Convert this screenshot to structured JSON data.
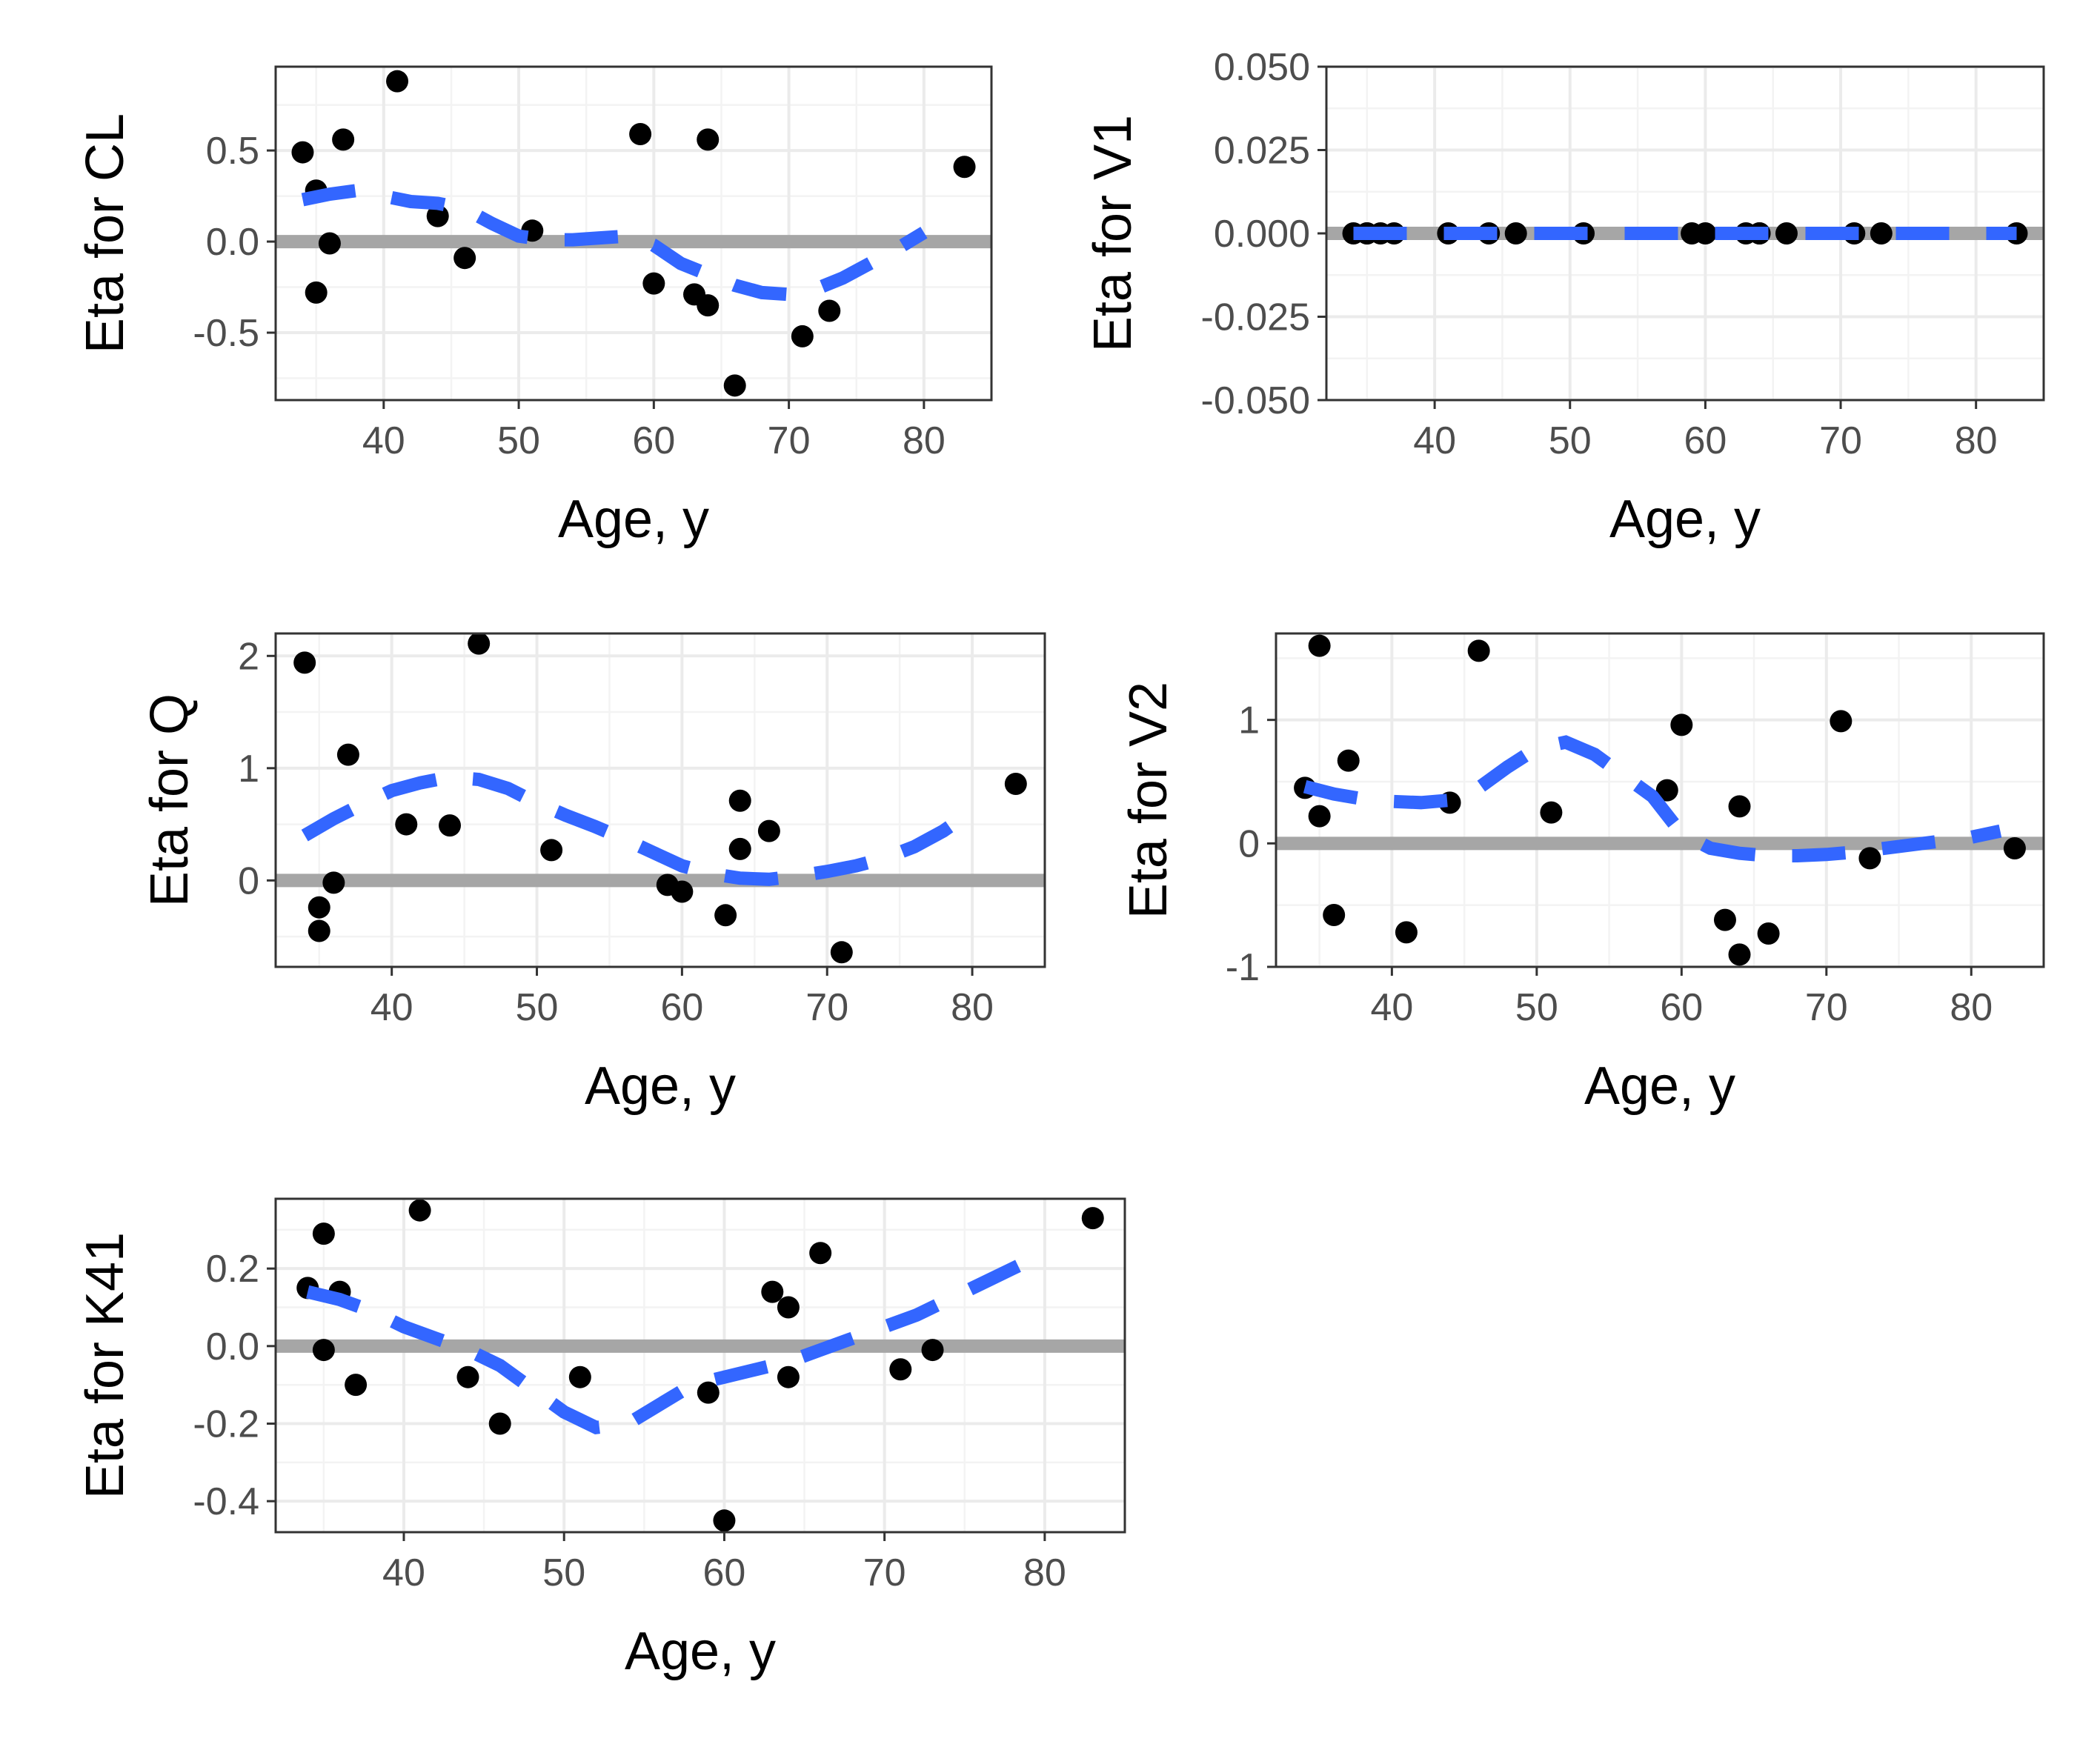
{
  "chart_data": [
    {
      "type": "scatter",
      "xlabel": "Age, y",
      "ylabel": "Eta for CL",
      "xlim": [
        32,
        85
      ],
      "ylim": [
        -0.87,
        0.96
      ],
      "xticks": [
        40,
        50,
        60,
        70,
        80
      ],
      "yticks": [
        -0.5,
        0.0,
        0.5
      ],
      "ytick_labels": [
        "-0.5",
        "0.0",
        "0.5"
      ],
      "reference_line": 0,
      "points": [
        [
          34,
          0.49
        ],
        [
          35,
          0.28
        ],
        [
          35,
          -0.28
        ],
        [
          36,
          -0.01
        ],
        [
          37,
          0.56
        ],
        [
          41,
          0.88
        ],
        [
          44,
          0.14
        ],
        [
          46,
          -0.09
        ],
        [
          51,
          0.06
        ],
        [
          59,
          0.59
        ],
        [
          60,
          -0.23
        ],
        [
          63,
          -0.29
        ],
        [
          64,
          -0.35
        ],
        [
          64,
          0.56
        ],
        [
          66,
          -0.79
        ],
        [
          71,
          -0.52
        ],
        [
          73,
          -0.38
        ],
        [
          83,
          0.41
        ]
      ],
      "smooth": [
        [
          34,
          0.23
        ],
        [
          36,
          0.26
        ],
        [
          38,
          0.28
        ],
        [
          40,
          0.25
        ],
        [
          42,
          0.22
        ],
        [
          44,
          0.21
        ],
        [
          46,
          0.18
        ],
        [
          48,
          0.1
        ],
        [
          50,
          0.03
        ],
        [
          52,
          0.01
        ],
        [
          54,
          0.01
        ],
        [
          56,
          0.02
        ],
        [
          58,
          0.03
        ],
        [
          60,
          -0.02
        ],
        [
          62,
          -0.12
        ],
        [
          64,
          -0.18
        ],
        [
          66,
          -0.24
        ],
        [
          68,
          -0.28
        ],
        [
          70,
          -0.29
        ],
        [
          72,
          -0.26
        ],
        [
          74,
          -0.2
        ],
        [
          76,
          -0.12
        ],
        [
          78,
          -0.04
        ],
        [
          80,
          0.05
        ]
      ]
    },
    {
      "type": "scatter",
      "xlabel": "Age, y",
      "ylabel": "Eta for V1",
      "xlim": [
        32,
        85
      ],
      "ylim": [
        -0.05,
        0.05
      ],
      "xticks": [
        40,
        50,
        60,
        70,
        80
      ],
      "yticks": [
        -0.05,
        -0.025,
        0.0,
        0.025,
        0.05
      ],
      "ytick_labels": [
        "-0.050",
        "-0.025",
        "0.000",
        "0.025",
        "0.050"
      ],
      "reference_line": 0,
      "points": [
        [
          34,
          0
        ],
        [
          35,
          0
        ],
        [
          35,
          0
        ],
        [
          36,
          0
        ],
        [
          37,
          0
        ],
        [
          41,
          0
        ],
        [
          44,
          0
        ],
        [
          46,
          0
        ],
        [
          51,
          0
        ],
        [
          59,
          0
        ],
        [
          60,
          0
        ],
        [
          63,
          0
        ],
        [
          64,
          0
        ],
        [
          64,
          0
        ],
        [
          66,
          0
        ],
        [
          71,
          0
        ],
        [
          73,
          0
        ],
        [
          83,
          0
        ]
      ],
      "smooth": [
        [
          34,
          0
        ],
        [
          83,
          0
        ]
      ]
    },
    {
      "type": "scatter",
      "xlabel": "Age, y",
      "ylabel": "Eta for Q",
      "xlim": [
        32,
        85
      ],
      "ylim": [
        -0.77,
        2.2
      ],
      "xticks": [
        40,
        50,
        60,
        70,
        80
      ],
      "yticks": [
        0,
        1,
        2
      ],
      "ytick_labels": [
        "0",
        "1",
        "2"
      ],
      "reference_line": 0,
      "points": [
        [
          34,
          1.94
        ],
        [
          35,
          -0.24
        ],
        [
          35,
          -0.45
        ],
        [
          36,
          -0.02
        ],
        [
          37,
          1.12
        ],
        [
          41,
          0.5
        ],
        [
          44,
          0.49
        ],
        [
          46,
          2.11
        ],
        [
          51,
          0.27
        ],
        [
          59,
          -0.04
        ],
        [
          60,
          -0.1
        ],
        [
          63,
          -0.31
        ],
        [
          64,
          0.28
        ],
        [
          64,
          0.71
        ],
        [
          66,
          0.44
        ],
        [
          71,
          -0.64
        ],
        [
          83,
          0.86
        ]
      ],
      "smooth": [
        [
          34,
          0.4
        ],
        [
          36,
          0.55
        ],
        [
          38,
          0.68
        ],
        [
          40,
          0.8
        ],
        [
          42,
          0.87
        ],
        [
          44,
          0.92
        ],
        [
          46,
          0.9
        ],
        [
          48,
          0.82
        ],
        [
          50,
          0.69
        ],
        [
          52,
          0.58
        ],
        [
          54,
          0.48
        ],
        [
          56,
          0.37
        ],
        [
          58,
          0.25
        ],
        [
          60,
          0.13
        ],
        [
          62,
          0.06
        ],
        [
          64,
          0.02
        ],
        [
          66,
          0.01
        ],
        [
          68,
          0.04
        ],
        [
          70,
          0.08
        ],
        [
          72,
          0.13
        ],
        [
          74,
          0.2
        ],
        [
          76,
          0.3
        ],
        [
          78,
          0.44
        ],
        [
          80,
          0.62
        ]
      ]
    },
    {
      "type": "scatter",
      "xlabel": "Age, y",
      "ylabel": "Eta for V2",
      "xlim": [
        32,
        85
      ],
      "ylim": [
        -1,
        1.7
      ],
      "xticks": [
        40,
        50,
        60,
        70,
        80
      ],
      "yticks": [
        -1,
        0,
        1
      ],
      "ytick_labels": [
        "-1",
        "0",
        "1"
      ],
      "reference_line": 0,
      "points": [
        [
          34,
          0.45
        ],
        [
          35,
          1.6
        ],
        [
          35,
          0.22
        ],
        [
          36,
          -0.58
        ],
        [
          37,
          0.67
        ],
        [
          41,
          -0.72
        ],
        [
          44,
          0.33
        ],
        [
          46,
          1.56
        ],
        [
          51,
          0.25
        ],
        [
          59,
          0.43
        ],
        [
          60,
          0.96
        ],
        [
          63,
          -0.62
        ],
        [
          64,
          0.3
        ],
        [
          64,
          -0.9
        ],
        [
          66,
          -0.73
        ],
        [
          71,
          0.99
        ],
        [
          73,
          -0.12
        ],
        [
          83,
          -0.04
        ]
      ],
      "smooth": [
        [
          34,
          0.46
        ],
        [
          36,
          0.4
        ],
        [
          38,
          0.36
        ],
        [
          40,
          0.34
        ],
        [
          42,
          0.33
        ],
        [
          44,
          0.35
        ],
        [
          46,
          0.45
        ],
        [
          48,
          0.62
        ],
        [
          50,
          0.77
        ],
        [
          52,
          0.82
        ],
        [
          54,
          0.72
        ],
        [
          56,
          0.55
        ],
        [
          58,
          0.38
        ],
        [
          60,
          0.08
        ],
        [
          62,
          -0.04
        ],
        [
          64,
          -0.08
        ],
        [
          66,
          -0.1
        ],
        [
          68,
          -0.1
        ],
        [
          70,
          -0.09
        ],
        [
          72,
          -0.07
        ],
        [
          74,
          -0.04
        ],
        [
          76,
          -0.01
        ],
        [
          78,
          0.02
        ],
        [
          80,
          0.05
        ],
        [
          82,
          0.1
        ]
      ]
    },
    {
      "type": "scatter",
      "xlabel": "Age, y",
      "ylabel": "Eta for K41",
      "xlim": [
        32,
        85
      ],
      "ylim": [
        -0.48,
        0.38
      ],
      "xticks": [
        40,
        50,
        60,
        70,
        80
      ],
      "yticks": [
        -0.4,
        -0.2,
        0.0,
        0.2
      ],
      "ytick_labels": [
        "-0.4",
        "-0.2",
        "0.0",
        "0.2"
      ],
      "reference_line": 0,
      "points": [
        [
          34,
          0.15
        ],
        [
          35,
          0.29
        ],
        [
          35,
          -0.01
        ],
        [
          36,
          0.14
        ],
        [
          37,
          -0.1
        ],
        [
          41,
          0.35
        ],
        [
          44,
          -0.08
        ],
        [
          46,
          -0.2
        ],
        [
          51,
          -0.08
        ],
        [
          59,
          -0.12
        ],
        [
          60,
          -0.45
        ],
        [
          63,
          0.14
        ],
        [
          64,
          0.1
        ],
        [
          64,
          -0.08
        ],
        [
          66,
          0.24
        ],
        [
          71,
          -0.06
        ],
        [
          73,
          -0.01
        ],
        [
          83,
          0.33
        ]
      ],
      "smooth": [
        [
          34,
          0.14
        ],
        [
          36,
          0.12
        ],
        [
          38,
          0.09
        ],
        [
          40,
          0.05
        ],
        [
          42,
          0.02
        ],
        [
          44,
          -0.01
        ],
        [
          46,
          -0.05
        ],
        [
          48,
          -0.11
        ],
        [
          50,
          -0.17
        ],
        [
          52,
          -0.21
        ],
        [
          54,
          -0.2
        ],
        [
          56,
          -0.15
        ],
        [
          58,
          -0.1
        ],
        [
          60,
          -0.08
        ],
        [
          62,
          -0.06
        ],
        [
          64,
          -0.04
        ],
        [
          66,
          -0.01
        ],
        [
          68,
          0.02
        ],
        [
          70,
          0.05
        ],
        [
          72,
          0.08
        ],
        [
          74,
          0.12
        ],
        [
          76,
          0.16
        ],
        [
          78,
          0.2
        ],
        [
          80,
          0.24
        ]
      ]
    }
  ],
  "colors": {
    "points": "#000000",
    "smooth": "#3366ff",
    "reference_line": "#a6a6a6",
    "grid_major": "#ebebeb",
    "grid_minor": "#f3f3f3",
    "panel_border": "#333333"
  }
}
